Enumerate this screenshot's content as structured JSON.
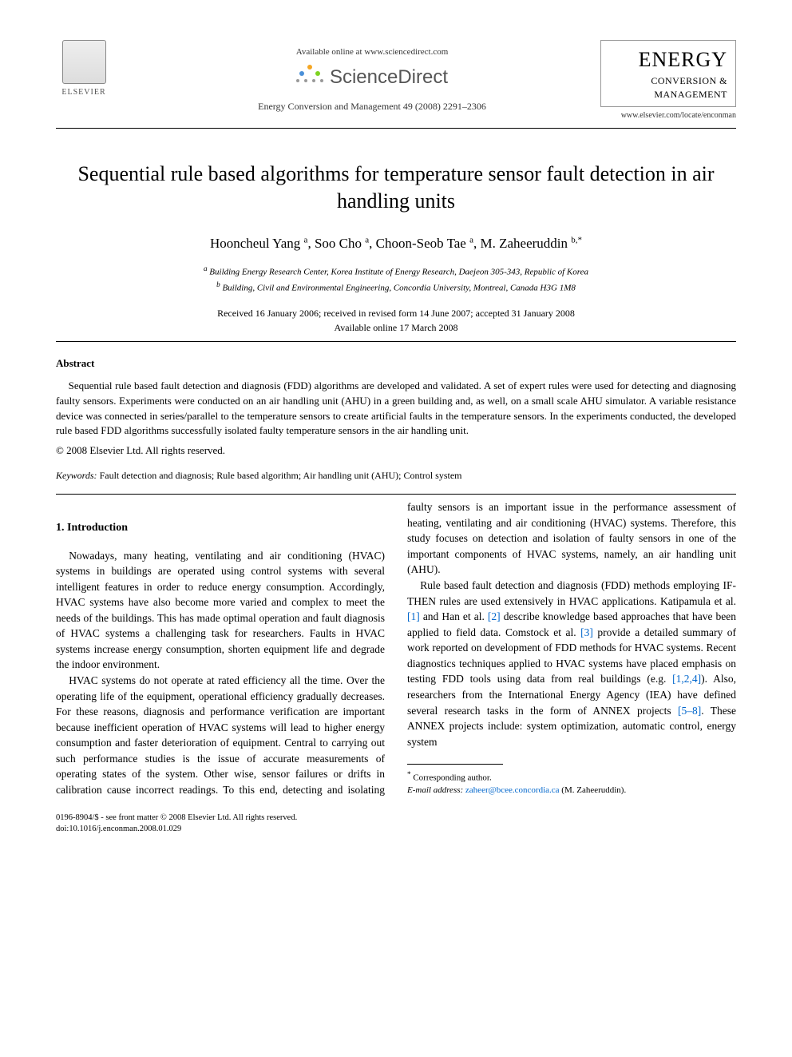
{
  "header": {
    "elsevier_label": "ELSEVIER",
    "available_online": "Available online at www.sciencedirect.com",
    "sciencedirect": "ScienceDirect",
    "journal_ref": "Energy Conversion and Management 49 (2008) 2291–2306",
    "journal_logo": {
      "line1": "ENERGY",
      "line2": "CONVERSION &",
      "line3": "MANAGEMENT"
    },
    "journal_url": "www.elsevier.com/locate/enconman"
  },
  "title": "Sequential rule based algorithms for temperature sensor fault detection in air handling units",
  "authors_html": "Hooncheul Yang <sup>a</sup>, Soo Cho <sup>a</sup>, Choon-Seob Tae <sup>a</sup>, M. Zaheeruddin <sup>b,*</sup>",
  "affiliations": {
    "a": "Building Energy Research Center, Korea Institute of Energy Research, Daejeon 305-343, Republic of Korea",
    "b": "Building, Civil and Environmental Engineering, Concordia University, Montreal, Canada H3G 1M8"
  },
  "dates": {
    "received": "Received 16 January 2006; received in revised form 14 June 2007; accepted 31 January 2008",
    "available": "Available online 17 March 2008"
  },
  "abstract": {
    "heading": "Abstract",
    "body": "Sequential rule based fault detection and diagnosis (FDD) algorithms are developed and validated. A set of expert rules were used for detecting and diagnosing faulty sensors. Experiments were conducted on an air handling unit (AHU) in a green building and, as well, on a small scale AHU simulator. A variable resistance device was connected in series/parallel to the temperature sensors to create artificial faults in the temperature sensors. In the experiments conducted, the developed rule based FDD algorithms successfully isolated faulty temperature sensors in the air handling unit.",
    "copyright": "© 2008 Elsevier Ltd. All rights reserved."
  },
  "keywords": {
    "label": "Keywords:",
    "text": "Fault detection and diagnosis; Rule based algorithm; Air handling unit (AHU); Control system"
  },
  "section1": {
    "heading": "1. Introduction",
    "p1": "Nowadays, many heating, ventilating and air conditioning (HVAC) systems in buildings are operated using control systems with several intelligent features in order to reduce energy consumption. Accordingly, HVAC systems have also become more varied and complex to meet the needs of the buildings. This has made optimal operation and fault diagnosis of HVAC systems a challenging task for researchers. Faults in HVAC systems increase energy consumption, shorten equipment life and degrade the indoor environment.",
    "p2_a": "HVAC systems do not operate at rated efficiency all the time. Over the operating life of the equipment, operational efficiency gradually decreases. For these reasons, diagnosis and performance verification are important because inefficient operation of HVAC systems will lead to higher energy consumption and faster deterioration of equipment. Central to carrying out such performance studies is the issue",
    "p2_b": "of accurate measurements of operating states of the system. Other wise, sensor failures or drifts in calibration cause incorrect readings. To this end, detecting and isolating faulty sensors is an important issue in the performance assessment of heating, ventilating and air conditioning (HVAC) systems. Therefore, this study focuses on detection and isolation of faulty sensors in one of the important components of HVAC systems, namely, an air handling unit (AHU).",
    "p3_a": "Rule based fault detection and diagnosis (FDD) methods employing IF-THEN rules are used extensively in HVAC applications. Katipamula et al. ",
    "ref1": "[1]",
    "p3_b": " and Han et al. ",
    "ref2": "[2]",
    "p3_c": " describe knowledge based approaches that have been applied to field data. Comstock et al. ",
    "ref3": "[3]",
    "p3_d": " provide a detailed summary of work reported on development of FDD methods for HVAC systems. Recent diagnostics techniques applied to HVAC systems have placed emphasis on testing FDD tools using data from real buildings (e.g. ",
    "ref124": "[1,2,4]",
    "p3_e": "). Also, researchers from the International Energy Agency (IEA) have defined several research tasks in the form of ANNEX projects ",
    "ref58": "[5–8]",
    "p3_f": ". These ANNEX projects include: system optimization, automatic control, energy system"
  },
  "footnote": {
    "corresponding": "Corresponding author.",
    "email_label": "E-mail address:",
    "email": "zaheer@bcee.concordia.ca",
    "email_suffix": "(M. Zaheeruddin)."
  },
  "footer": {
    "line1": "0196-8904/$ - see front matter © 2008 Elsevier Ltd. All rights reserved.",
    "line2": "doi:10.1016/j.enconman.2008.01.029"
  },
  "colors": {
    "link": "#0066cc",
    "text": "#000000",
    "bg": "#ffffff",
    "sd_orange": "#f5a623",
    "sd_blue": "#4a90d9",
    "sd_green": "#7ed321"
  }
}
